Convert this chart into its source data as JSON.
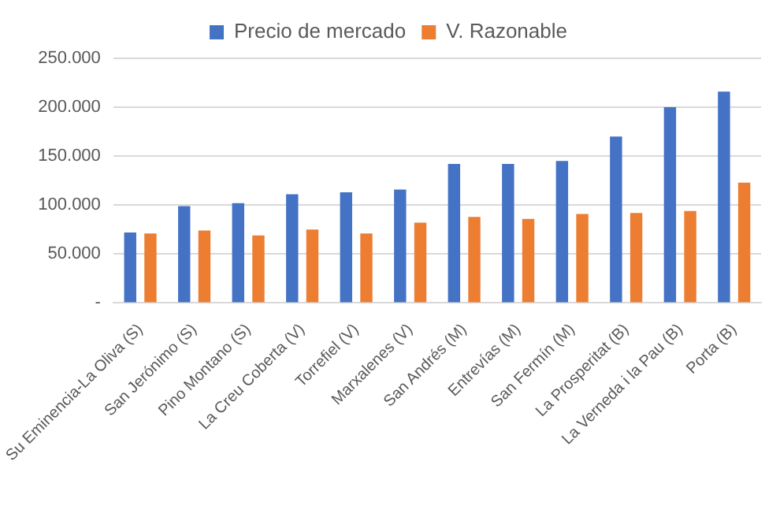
{
  "chart_data": {
    "type": "bar",
    "categories": [
      "Su Eminencia-La Oliva (S)",
      "San Jerónimo (S)",
      "Pino Montano (S)",
      "La Creu Coberta (V)",
      "Torrefiel (V)",
      "Marxalenes (V)",
      "San Andrés (M)",
      "Entrevías (M)",
      "San Fermín (M)",
      "La Prosperitat (B)",
      "La Verneda i la Pau (B)",
      "Porta (B)"
    ],
    "series": [
      {
        "name": "Precio de mercado",
        "color": "#4472c4",
        "values": [
          72000,
          99000,
          102000,
          111000,
          113000,
          116000,
          142000,
          142000,
          145000,
          170000,
          200000,
          216000
        ]
      },
      {
        "name": "V. Razonable",
        "color": "#ed7d31",
        "values": [
          71000,
          74000,
          69000,
          75000,
          71000,
          82000,
          88000,
          86000,
          91000,
          92000,
          94000,
          123000
        ]
      }
    ],
    "ylim": [
      0,
      250000
    ],
    "yticks": [
      {
        "value": 0,
        "label": "-"
      },
      {
        "value": 50000,
        "label": "50.000"
      },
      {
        "value": 100000,
        "label": "100.000"
      },
      {
        "value": 150000,
        "label": "150.000"
      },
      {
        "value": 200000,
        "label": "200.000"
      },
      {
        "value": 250000,
        "label": "250.000"
      }
    ],
    "grid": "y",
    "legend": "top"
  }
}
